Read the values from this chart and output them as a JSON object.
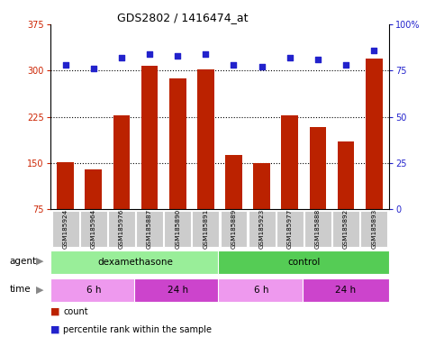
{
  "title": "GDS2802 / 1416474_at",
  "samples": [
    "GSM185924",
    "GSM185964",
    "GSM185976",
    "GSM185887",
    "GSM185890",
    "GSM185891",
    "GSM185889",
    "GSM185923",
    "GSM185977",
    "GSM185888",
    "GSM185892",
    "GSM185893"
  ],
  "counts": [
    152,
    140,
    228,
    307,
    287,
    302,
    163,
    150,
    228,
    208,
    185,
    320
  ],
  "percentiles": [
    78,
    76,
    82,
    84,
    83,
    84,
    78,
    77,
    82,
    81,
    78,
    86
  ],
  "ylim_left": [
    75,
    375
  ],
  "ylim_right": [
    0,
    100
  ],
  "yticks_left": [
    75,
    150,
    225,
    300,
    375
  ],
  "yticks_right": [
    0,
    25,
    50,
    75,
    100
  ],
  "bar_color": "#bb2200",
  "dot_color": "#2222cc",
  "agent_groups": [
    {
      "label": "dexamethasone",
      "start": 0,
      "end": 6,
      "color": "#99ee99"
    },
    {
      "label": "control",
      "start": 6,
      "end": 12,
      "color": "#55cc55"
    }
  ],
  "time_groups": [
    {
      "label": "6 h",
      "start": 0,
      "end": 3,
      "color": "#ee99ee"
    },
    {
      "label": "24 h",
      "start": 3,
      "end": 6,
      "color": "#cc44cc"
    },
    {
      "label": "6 h",
      "start": 6,
      "end": 9,
      "color": "#ee99ee"
    },
    {
      "label": "24 h",
      "start": 9,
      "end": 12,
      "color": "#cc44cc"
    }
  ],
  "left_tick_color": "#cc2200",
  "right_tick_color": "#2222cc",
  "bg_color": "#ffffff",
  "label_bg": "#cccccc"
}
